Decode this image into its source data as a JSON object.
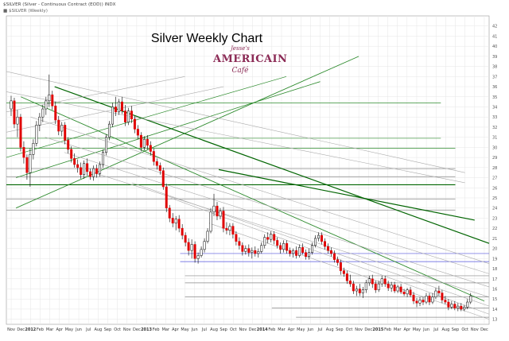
{
  "header": {
    "line1": "$SILVER (Silver - Continuous Contract (EOD)) INDX",
    "line2": "■ $SILVER (Weekly)"
  },
  "logo": {
    "line1": "Jesse's",
    "line2": "AMERICAIN",
    "line3": "Café"
  },
  "chart_data": {
    "type": "candlestick",
    "title": "Silver Weekly Chart",
    "xlabel": "",
    "ylabel": "",
    "ylim": [
      12.5,
      43
    ],
    "y_ticks": [
      13,
      14,
      15,
      16,
      17,
      18,
      19,
      20,
      21,
      22,
      23,
      24,
      25,
      26,
      27,
      28,
      29,
      30,
      31,
      32,
      33,
      34,
      35,
      36,
      37,
      38,
      39,
      40,
      41,
      42
    ],
    "grid": true,
    "x_labels": [
      "Nov",
      "Dec",
      "2012",
      "Feb",
      "Mar",
      "Apr",
      "May",
      "Jun",
      "Jul",
      "Aug",
      "Sep",
      "Oct",
      "Nov",
      "Dec",
      "2013",
      "Feb",
      "Mar",
      "Apr",
      "May",
      "Jun",
      "Jul",
      "Aug",
      "Sep",
      "Oct",
      "Nov",
      "Dec",
      "2014",
      "Feb",
      "Mar",
      "Apr",
      "May",
      "Jun",
      "Jul",
      "Aug",
      "Sep",
      "Oct",
      "Nov",
      "Dec",
      "2015",
      "Feb",
      "Mar",
      "Apr",
      "May",
      "Jun",
      "Jul",
      "Aug",
      "Sep",
      "Oct",
      "Nov",
      "Dec"
    ],
    "bold_x_labels": [
      "2012",
      "2013",
      "2014",
      "2015"
    ],
    "colors": {
      "up": "#ffffff",
      "down": "#e00000",
      "wick": "#000000",
      "grid": "#e6e6e6"
    },
    "candles": [
      {
        "o": 33.8,
        "h": 35.1,
        "l": 33.1,
        "c": 34.6
      },
      {
        "o": 34.6,
        "h": 34.9,
        "l": 31.9,
        "c": 32.3
      },
      {
        "o": 32.3,
        "h": 33.7,
        "l": 31.0,
        "c": 33.0
      },
      {
        "o": 33.0,
        "h": 33.3,
        "l": 29.6,
        "c": 30.0
      },
      {
        "o": 30.0,
        "h": 30.6,
        "l": 28.4,
        "c": 29.0
      },
      {
        "o": 29.0,
        "h": 29.3,
        "l": 26.8,
        "c": 27.5
      },
      {
        "o": 27.5,
        "h": 29.9,
        "l": 26.1,
        "c": 29.3
      },
      {
        "o": 29.3,
        "h": 30.8,
        "l": 28.8,
        "c": 30.4
      },
      {
        "o": 30.4,
        "h": 32.6,
        "l": 30.1,
        "c": 32.2
      },
      {
        "o": 32.2,
        "h": 33.4,
        "l": 31.6,
        "c": 33.0
      },
      {
        "o": 33.0,
        "h": 34.2,
        "l": 32.5,
        "c": 33.8
      },
      {
        "o": 33.8,
        "h": 35.0,
        "l": 33.2,
        "c": 34.6
      },
      {
        "o": 34.6,
        "h": 37.2,
        "l": 34.0,
        "c": 35.2
      },
      {
        "o": 35.2,
        "h": 35.6,
        "l": 33.7,
        "c": 34.1
      },
      {
        "o": 34.1,
        "h": 34.5,
        "l": 32.3,
        "c": 32.7
      },
      {
        "o": 32.7,
        "h": 33.1,
        "l": 31.2,
        "c": 31.6
      },
      {
        "o": 31.6,
        "h": 32.5,
        "l": 31.1,
        "c": 32.2
      },
      {
        "o": 32.2,
        "h": 32.5,
        "l": 30.3,
        "c": 30.7
      },
      {
        "o": 30.7,
        "h": 31.0,
        "l": 29.4,
        "c": 29.8
      },
      {
        "o": 29.8,
        "h": 30.1,
        "l": 28.5,
        "c": 28.9
      },
      {
        "o": 28.9,
        "h": 29.4,
        "l": 28.0,
        "c": 28.3
      },
      {
        "o": 28.3,
        "h": 28.8,
        "l": 27.5,
        "c": 28.0
      },
      {
        "o": 28.0,
        "h": 28.5,
        "l": 26.9,
        "c": 27.3
      },
      {
        "o": 27.3,
        "h": 28.7,
        "l": 26.9,
        "c": 28.4
      },
      {
        "o": 28.4,
        "h": 28.9,
        "l": 27.2,
        "c": 27.6
      },
      {
        "o": 27.6,
        "h": 27.9,
        "l": 26.8,
        "c": 27.1
      },
      {
        "o": 27.1,
        "h": 28.2,
        "l": 26.7,
        "c": 27.9
      },
      {
        "o": 27.9,
        "h": 28.3,
        "l": 27.0,
        "c": 27.4
      },
      {
        "o": 27.4,
        "h": 28.6,
        "l": 27.1,
        "c": 28.3
      },
      {
        "o": 28.3,
        "h": 29.8,
        "l": 28.0,
        "c": 29.5
      },
      {
        "o": 29.5,
        "h": 31.3,
        "l": 29.2,
        "c": 31.0
      },
      {
        "o": 31.0,
        "h": 32.6,
        "l": 30.7,
        "c": 32.3
      },
      {
        "o": 32.3,
        "h": 34.4,
        "l": 32.0,
        "c": 34.0
      },
      {
        "o": 34.0,
        "h": 35.0,
        "l": 33.1,
        "c": 33.5
      },
      {
        "o": 33.5,
        "h": 34.8,
        "l": 33.2,
        "c": 34.5
      },
      {
        "o": 34.5,
        "h": 35.0,
        "l": 33.3,
        "c": 33.6
      },
      {
        "o": 33.6,
        "h": 34.2,
        "l": 32.1,
        "c": 32.5
      },
      {
        "o": 32.5,
        "h": 33.9,
        "l": 32.2,
        "c": 33.6
      },
      {
        "o": 33.6,
        "h": 34.1,
        "l": 32.4,
        "c": 32.8
      },
      {
        "o": 32.8,
        "h": 33.1,
        "l": 31.4,
        "c": 31.8
      },
      {
        "o": 31.8,
        "h": 32.2,
        "l": 30.8,
        "c": 31.2
      },
      {
        "o": 31.2,
        "h": 31.5,
        "l": 29.6,
        "c": 30.0
      },
      {
        "o": 30.0,
        "h": 31.1,
        "l": 29.7,
        "c": 30.8
      },
      {
        "o": 30.8,
        "h": 31.2,
        "l": 29.8,
        "c": 30.2
      },
      {
        "o": 30.2,
        "h": 30.6,
        "l": 29.2,
        "c": 29.6
      },
      {
        "o": 29.6,
        "h": 29.9,
        "l": 28.2,
        "c": 28.6
      },
      {
        "o": 28.6,
        "h": 28.9,
        "l": 27.8,
        "c": 28.2
      },
      {
        "o": 28.2,
        "h": 28.5,
        "l": 27.3,
        "c": 27.7
      },
      {
        "o": 27.7,
        "h": 28.0,
        "l": 25.8,
        "c": 26.1
      },
      {
        "o": 26.1,
        "h": 26.4,
        "l": 23.6,
        "c": 24.0
      },
      {
        "o": 24.0,
        "h": 24.3,
        "l": 22.6,
        "c": 23.0
      },
      {
        "o": 23.0,
        "h": 23.5,
        "l": 22.1,
        "c": 22.5
      },
      {
        "o": 22.5,
        "h": 23.2,
        "l": 21.8,
        "c": 22.9
      },
      {
        "o": 22.9,
        "h": 23.3,
        "l": 21.6,
        "c": 22.0
      },
      {
        "o": 22.0,
        "h": 22.4,
        "l": 20.9,
        "c": 21.3
      },
      {
        "o": 21.3,
        "h": 21.6,
        "l": 20.2,
        "c": 20.6
      },
      {
        "o": 20.6,
        "h": 21.0,
        "l": 19.3,
        "c": 19.8
      },
      {
        "o": 19.8,
        "h": 20.9,
        "l": 19.0,
        "c": 20.4
      },
      {
        "o": 20.4,
        "h": 20.7,
        "l": 18.6,
        "c": 19.0
      },
      {
        "o": 19.0,
        "h": 19.6,
        "l": 18.5,
        "c": 19.3
      },
      {
        "o": 19.3,
        "h": 20.2,
        "l": 19.1,
        "c": 19.9
      },
      {
        "o": 19.9,
        "h": 21.0,
        "l": 19.6,
        "c": 20.7
      },
      {
        "o": 20.7,
        "h": 22.0,
        "l": 20.5,
        "c": 21.7
      },
      {
        "o": 21.7,
        "h": 24.0,
        "l": 21.5,
        "c": 23.6
      },
      {
        "o": 23.6,
        "h": 25.4,
        "l": 23.2,
        "c": 24.2
      },
      {
        "o": 24.2,
        "h": 24.6,
        "l": 22.8,
        "c": 23.2
      },
      {
        "o": 23.2,
        "h": 24.0,
        "l": 22.9,
        "c": 23.7
      },
      {
        "o": 23.7,
        "h": 24.1,
        "l": 21.6,
        "c": 22.0
      },
      {
        "o": 22.0,
        "h": 22.6,
        "l": 21.4,
        "c": 21.8
      },
      {
        "o": 21.8,
        "h": 22.5,
        "l": 21.3,
        "c": 22.2
      },
      {
        "o": 22.2,
        "h": 22.5,
        "l": 21.0,
        "c": 21.4
      },
      {
        "o": 21.4,
        "h": 21.7,
        "l": 20.3,
        "c": 20.7
      },
      {
        "o": 20.7,
        "h": 21.1,
        "l": 19.9,
        "c": 20.3
      },
      {
        "o": 20.3,
        "h": 20.6,
        "l": 19.3,
        "c": 19.7
      },
      {
        "o": 19.7,
        "h": 20.3,
        "l": 19.4,
        "c": 20.0
      },
      {
        "o": 20.0,
        "h": 20.4,
        "l": 19.2,
        "c": 19.6
      },
      {
        "o": 19.6,
        "h": 20.1,
        "l": 19.0,
        "c": 19.8
      },
      {
        "o": 19.8,
        "h": 20.2,
        "l": 19.2,
        "c": 19.5
      },
      {
        "o": 19.5,
        "h": 20.0,
        "l": 19.1,
        "c": 19.7
      },
      {
        "o": 19.7,
        "h": 20.6,
        "l": 19.5,
        "c": 20.3
      },
      {
        "o": 20.3,
        "h": 21.4,
        "l": 20.0,
        "c": 21.1
      },
      {
        "o": 21.1,
        "h": 21.6,
        "l": 20.5,
        "c": 20.9
      },
      {
        "o": 20.9,
        "h": 21.7,
        "l": 20.6,
        "c": 21.4
      },
      {
        "o": 21.4,
        "h": 21.7,
        "l": 20.4,
        "c": 20.8
      },
      {
        "o": 20.8,
        "h": 21.1,
        "l": 20.0,
        "c": 20.3
      },
      {
        "o": 20.3,
        "h": 20.6,
        "l": 19.5,
        "c": 19.9
      },
      {
        "o": 19.9,
        "h": 20.8,
        "l": 19.6,
        "c": 20.5
      },
      {
        "o": 20.5,
        "h": 20.8,
        "l": 19.5,
        "c": 19.8
      },
      {
        "o": 19.8,
        "h": 20.1,
        "l": 19.2,
        "c": 19.5
      },
      {
        "o": 19.5,
        "h": 20.0,
        "l": 19.1,
        "c": 19.8
      },
      {
        "o": 19.8,
        "h": 20.2,
        "l": 19.0,
        "c": 19.3
      },
      {
        "o": 19.3,
        "h": 20.4,
        "l": 19.1,
        "c": 20.1
      },
      {
        "o": 20.1,
        "h": 20.5,
        "l": 19.4,
        "c": 19.6
      },
      {
        "o": 19.6,
        "h": 19.9,
        "l": 18.9,
        "c": 19.2
      },
      {
        "o": 19.2,
        "h": 20.0,
        "l": 18.9,
        "c": 19.6
      },
      {
        "o": 19.6,
        "h": 20.6,
        "l": 19.4,
        "c": 20.3
      },
      {
        "o": 20.3,
        "h": 21.3,
        "l": 20.1,
        "c": 21.0
      },
      {
        "o": 21.0,
        "h": 21.6,
        "l": 20.7,
        "c": 21.3
      },
      {
        "o": 21.3,
        "h": 21.6,
        "l": 20.4,
        "c": 20.7
      },
      {
        "o": 20.7,
        "h": 21.0,
        "l": 19.9,
        "c": 20.2
      },
      {
        "o": 20.2,
        "h": 20.5,
        "l": 19.5,
        "c": 19.8
      },
      {
        "o": 19.8,
        "h": 20.1,
        "l": 19.2,
        "c": 19.5
      },
      {
        "o": 19.5,
        "h": 19.8,
        "l": 18.6,
        "c": 18.9
      },
      {
        "o": 18.9,
        "h": 19.2,
        "l": 18.3,
        "c": 18.6
      },
      {
        "o": 18.6,
        "h": 18.9,
        "l": 17.4,
        "c": 17.8
      },
      {
        "o": 17.8,
        "h": 18.1,
        "l": 17.2,
        "c": 17.5
      },
      {
        "o": 17.5,
        "h": 17.8,
        "l": 16.5,
        "c": 16.8
      },
      {
        "o": 16.8,
        "h": 17.4,
        "l": 16.2,
        "c": 16.5
      },
      {
        "o": 16.5,
        "h": 16.8,
        "l": 15.5,
        "c": 15.8
      },
      {
        "o": 15.8,
        "h": 16.3,
        "l": 15.3,
        "c": 16.0
      },
      {
        "o": 16.0,
        "h": 16.5,
        "l": 15.3,
        "c": 15.6
      },
      {
        "o": 15.6,
        "h": 16.2,
        "l": 15.1,
        "c": 15.9
      },
      {
        "o": 15.9,
        "h": 16.9,
        "l": 15.6,
        "c": 16.6
      },
      {
        "o": 16.6,
        "h": 17.3,
        "l": 16.3,
        "c": 17.0
      },
      {
        "o": 17.0,
        "h": 17.4,
        "l": 16.1,
        "c": 16.5
      },
      {
        "o": 16.5,
        "h": 16.8,
        "l": 15.6,
        "c": 15.9
      },
      {
        "o": 15.9,
        "h": 16.8,
        "l": 15.7,
        "c": 16.5
      },
      {
        "o": 16.5,
        "h": 17.3,
        "l": 16.2,
        "c": 17.0
      },
      {
        "o": 17.0,
        "h": 17.3,
        "l": 16.2,
        "c": 16.5
      },
      {
        "o": 16.5,
        "h": 16.8,
        "l": 15.8,
        "c": 16.1
      },
      {
        "o": 16.1,
        "h": 16.7,
        "l": 15.7,
        "c": 16.4
      },
      {
        "o": 16.4,
        "h": 16.7,
        "l": 15.6,
        "c": 15.8
      },
      {
        "o": 15.8,
        "h": 16.4,
        "l": 15.6,
        "c": 16.2
      },
      {
        "o": 16.2,
        "h": 16.5,
        "l": 15.5,
        "c": 15.7
      },
      {
        "o": 15.7,
        "h": 16.0,
        "l": 15.3,
        "c": 15.5
      },
      {
        "o": 15.5,
        "h": 16.1,
        "l": 15.2,
        "c": 15.9
      },
      {
        "o": 15.9,
        "h": 16.2,
        "l": 15.2,
        "c": 15.4
      },
      {
        "o": 15.4,
        "h": 15.7,
        "l": 14.5,
        "c": 14.8
      },
      {
        "o": 14.8,
        "h": 15.1,
        "l": 14.2,
        "c": 14.6
      },
      {
        "o": 14.6,
        "h": 15.2,
        "l": 14.3,
        "c": 14.9
      },
      {
        "o": 14.9,
        "h": 15.2,
        "l": 14.4,
        "c": 14.7
      },
      {
        "o": 14.7,
        "h": 15.6,
        "l": 14.5,
        "c": 15.3
      },
      {
        "o": 15.3,
        "h": 15.6,
        "l": 14.4,
        "c": 14.7
      },
      {
        "o": 14.7,
        "h": 15.6,
        "l": 14.5,
        "c": 15.2
      },
      {
        "o": 15.2,
        "h": 16.1,
        "l": 15.0,
        "c": 15.8
      },
      {
        "o": 15.8,
        "h": 16.3,
        "l": 15.3,
        "c": 15.6
      },
      {
        "o": 15.6,
        "h": 15.9,
        "l": 14.6,
        "c": 14.9
      },
      {
        "o": 14.9,
        "h": 15.3,
        "l": 14.5,
        "c": 14.7
      },
      {
        "o": 14.7,
        "h": 15.0,
        "l": 13.9,
        "c": 14.2
      },
      {
        "o": 14.2,
        "h": 14.8,
        "l": 14.0,
        "c": 14.5
      },
      {
        "o": 14.5,
        "h": 14.8,
        "l": 13.9,
        "c": 14.1
      },
      {
        "o": 14.1,
        "h": 14.6,
        "l": 13.8,
        "c": 14.3
      },
      {
        "o": 14.3,
        "h": 14.6,
        "l": 13.8,
        "c": 14.0
      },
      {
        "o": 14.0,
        "h": 14.4,
        "l": 13.8,
        "c": 14.2
      },
      {
        "o": 14.2,
        "h": 15.0,
        "l": 14.0,
        "c": 14.7
      },
      {
        "o": 14.7,
        "h": 15.6,
        "l": 14.5,
        "c": 15.3
      }
    ],
    "horizontal_lines": [
      {
        "y": 34.4,
        "color": "#2e8b2e",
        "x0": 0.0,
        "x1": 0.9
      },
      {
        "y": 30.9,
        "color": "#2e8b2e",
        "x0": 0.0,
        "x1": 0.9
      },
      {
        "y": 29.9,
        "color": "#2e8b2e",
        "x0": 0.0,
        "x1": 0.93
      },
      {
        "y": 27.9,
        "color": "#888888",
        "x0": 0.0,
        "x1": 0.93
      },
      {
        "y": 27.1,
        "color": "#888888",
        "x0": 0.0,
        "x1": 0.93
      },
      {
        "y": 26.3,
        "color": "#006400",
        "x0": 0.0,
        "x1": 0.93
      },
      {
        "y": 24.9,
        "color": "#888888",
        "x0": 0.0,
        "x1": 0.93
      },
      {
        "y": 23.8,
        "color": "#888888",
        "x0": 0.0,
        "x1": 0.93
      },
      {
        "y": 19.5,
        "color": "#5555dd",
        "x0": 0.36,
        "x1": 1.0
      },
      {
        "y": 18.7,
        "color": "#5555dd",
        "x0": 0.36,
        "x1": 1.0
      },
      {
        "y": 17.3,
        "color": "#888888",
        "x0": 0.37,
        "x1": 1.0
      },
      {
        "y": 16.6,
        "color": "#888888",
        "x0": 0.37,
        "x1": 1.0
      },
      {
        "y": 15.2,
        "color": "#888888",
        "x0": 0.37,
        "x1": 1.0
      },
      {
        "y": 14.1,
        "color": "#888888",
        "x0": 0.55,
        "x1": 1.0
      },
      {
        "y": 13.2,
        "color": "#888888",
        "x0": 0.6,
        "x1": 1.0
      }
    ],
    "trend_lines": [
      {
        "x0": 0.02,
        "y0": 24.0,
        "x1": 0.73,
        "y1": 39.0,
        "color": "#2e8b2e",
        "width": 0.9
      },
      {
        "x0": 0.02,
        "y0": 27.0,
        "x1": 0.65,
        "y1": 36.5,
        "color": "#2e8b2e",
        "width": 0.8
      },
      {
        "x0": 0.0,
        "y0": 29.0,
        "x1": 0.58,
        "y1": 37.0,
        "color": "#2e8b2e",
        "width": 0.7
      },
      {
        "x0": 0.03,
        "y0": 35.0,
        "x1": 0.99,
        "y1": 14.8,
        "color": "#2e8b2e",
        "width": 0.9
      },
      {
        "x0": 0.1,
        "y0": 36.0,
        "x1": 1.0,
        "y1": 20.5,
        "color": "#006400",
        "width": 1.2
      },
      {
        "x0": 0.44,
        "y0": 27.8,
        "x1": 0.97,
        "y1": 22.8,
        "color": "#006400",
        "width": 1.2
      },
      {
        "x0": 0.0,
        "y0": 37.5,
        "x1": 0.95,
        "y1": 27.5,
        "color": "#aaaaaa",
        "width": 0.6
      },
      {
        "x0": 0.0,
        "y0": 35.5,
        "x1": 0.95,
        "y1": 26.5,
        "color": "#aaaaaa",
        "width": 0.6
      },
      {
        "x0": 0.05,
        "y0": 33.0,
        "x1": 1.0,
        "y1": 18.5,
        "color": "#aaaaaa",
        "width": 0.6
      },
      {
        "x0": 0.08,
        "y0": 31.0,
        "x1": 1.0,
        "y1": 17.5,
        "color": "#aaaaaa",
        "width": 0.6
      },
      {
        "x0": 0.12,
        "y0": 29.5,
        "x1": 1.0,
        "y1": 16.2,
        "color": "#aaaaaa",
        "width": 0.6
      },
      {
        "x0": 0.18,
        "y0": 27.5,
        "x1": 1.0,
        "y1": 15.2,
        "color": "#aaaaaa",
        "width": 0.6
      },
      {
        "x0": 0.26,
        "y0": 26.5,
        "x1": 1.0,
        "y1": 14.3,
        "color": "#aaaaaa",
        "width": 0.6
      },
      {
        "x0": 0.34,
        "y0": 25.0,
        "x1": 1.0,
        "y1": 13.5,
        "color": "#aaaaaa",
        "width": 0.6
      },
      {
        "x0": 0.42,
        "y0": 22.5,
        "x1": 1.0,
        "y1": 13.0,
        "color": "#aaaaaa",
        "width": 0.6
      },
      {
        "x0": 0.0,
        "y0": 33.5,
        "x1": 0.37,
        "y1": 37.0,
        "color": "#aaaaaa",
        "width": 0.6
      },
      {
        "x0": 0.0,
        "y0": 31.5,
        "x1": 0.45,
        "y1": 36.0,
        "color": "#aaaaaa",
        "width": 0.6
      }
    ]
  }
}
